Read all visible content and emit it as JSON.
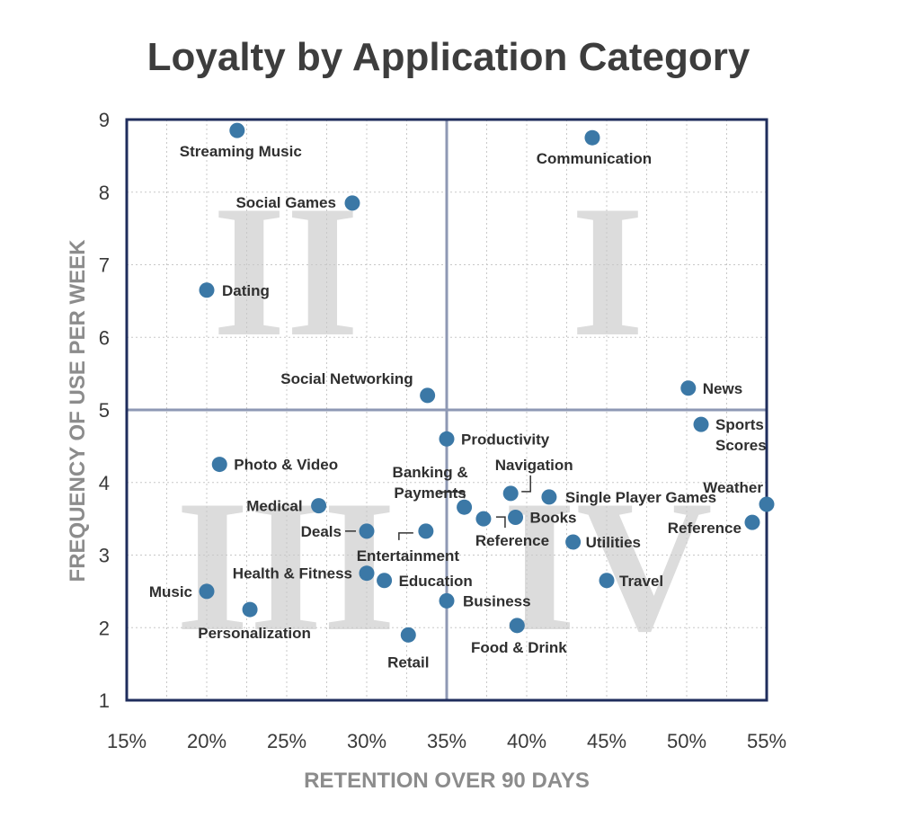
{
  "chart_data": {
    "type": "scatter",
    "title": "Loyalty by Application Category",
    "xlabel": "RETENTION OVER 90 DAYS",
    "ylabel": "FREQUENCY OF USE PER WEEK",
    "xlim": [
      15,
      55
    ],
    "ylim": [
      1,
      9
    ],
    "xticks": [
      15,
      20,
      25,
      30,
      35,
      40,
      45,
      50,
      55
    ],
    "xtick_labels": [
      "15%",
      "20%",
      "25%",
      "30%",
      "35%",
      "40%",
      "45%",
      "50%",
      "55%"
    ],
    "yticks": [
      1,
      2,
      3,
      4,
      5,
      6,
      7,
      8,
      9
    ],
    "ytick_labels": [
      "1",
      "2",
      "3",
      "4",
      "5",
      "6",
      "7",
      "8",
      "9"
    ],
    "grid": true,
    "quadrant_divider": {
      "x": 35,
      "y": 5
    },
    "quadrant_labels": [
      "I",
      "II",
      "III",
      "IV"
    ],
    "point_color": "#3b78a6",
    "points": [
      {
        "label": "Streaming Music",
        "x": 21.9,
        "y": 8.85
      },
      {
        "label": "Communication",
        "x": 44.1,
        "y": 8.75
      },
      {
        "label": "Social Games",
        "x": 29.1,
        "y": 7.85
      },
      {
        "label": "Dating",
        "x": 20.0,
        "y": 6.65
      },
      {
        "label": "Social Networking",
        "x": 33.8,
        "y": 5.2
      },
      {
        "label": "News",
        "x": 50.1,
        "y": 5.3
      },
      {
        "label": "Sports Scores",
        "x": 50.9,
        "y": 4.8
      },
      {
        "label": "Productivity",
        "x": 35.0,
        "y": 4.6
      },
      {
        "label": "Photo & Video",
        "x": 20.8,
        "y": 4.25
      },
      {
        "label": "Navigation",
        "x": 39.0,
        "y": 3.85
      },
      {
        "label": "Single Player Games",
        "x": 41.4,
        "y": 3.8
      },
      {
        "label": "Weather",
        "x": 55.0,
        "y": 3.7
      },
      {
        "label": "Medical",
        "x": 27.0,
        "y": 3.68
      },
      {
        "label": "Banking & Payments",
        "x": 36.1,
        "y": 3.66
      },
      {
        "label": "Reference",
        "x": 37.3,
        "y": 3.5
      },
      {
        "label": "Books",
        "x": 39.3,
        "y": 3.52
      },
      {
        "label": "Reference",
        "x": 54.1,
        "y": 3.45
      },
      {
        "label": "Deals",
        "x": 30.0,
        "y": 3.33
      },
      {
        "label": "Entertainment",
        "x": 33.7,
        "y": 3.33
      },
      {
        "label": "Utilities",
        "x": 42.9,
        "y": 3.18
      },
      {
        "label": "Health & Fitness",
        "x": 30.0,
        "y": 2.75
      },
      {
        "label": "Education",
        "x": 31.1,
        "y": 2.65
      },
      {
        "label": "Travel",
        "x": 45.0,
        "y": 2.65
      },
      {
        "label": "Music",
        "x": 20.0,
        "y": 2.5
      },
      {
        "label": "Business",
        "x": 35.0,
        "y": 2.37
      },
      {
        "label": "Personalization",
        "x": 22.7,
        "y": 2.25
      },
      {
        "label": "Food & Drink",
        "x": 39.4,
        "y": 2.03
      },
      {
        "label": "Retail",
        "x": 32.6,
        "y": 1.9
      }
    ]
  }
}
